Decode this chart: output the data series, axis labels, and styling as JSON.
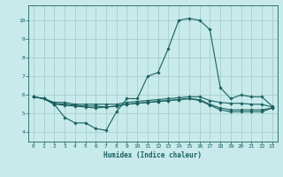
{
  "xlabel": "Humidex (Indice chaleur)",
  "bg_color": "#c8eaea",
  "grid_color": "#a0c8c8",
  "line_color": "#1a6060",
  "xlim": [
    -0.5,
    23.5
  ],
  "ylim": [
    3.5,
    10.8
  ],
  "yticks": [
    4,
    5,
    6,
    7,
    8,
    9,
    10
  ],
  "xticks": [
    0,
    1,
    2,
    3,
    4,
    5,
    6,
    7,
    8,
    9,
    10,
    11,
    12,
    13,
    14,
    15,
    16,
    17,
    18,
    19,
    20,
    21,
    22,
    23
  ],
  "curve1_x": [
    0,
    1,
    2,
    3,
    4,
    5,
    6,
    7,
    8,
    9,
    10,
    11,
    12,
    13,
    14,
    15,
    16,
    17,
    18,
    19,
    20,
    21,
    22,
    23
  ],
  "curve1_y": [
    5.9,
    5.8,
    5.5,
    4.8,
    4.5,
    4.5,
    4.2,
    4.1,
    5.1,
    5.8,
    5.8,
    7.0,
    7.2,
    8.5,
    10.0,
    10.1,
    10.0,
    9.5,
    6.4,
    5.8,
    6.0,
    5.9,
    5.9,
    5.4
  ],
  "curve2_x": [
    0,
    1,
    2,
    3,
    4,
    5,
    6,
    7,
    8,
    9,
    10,
    11,
    12,
    13,
    14,
    15,
    16,
    17,
    18,
    19,
    20,
    21,
    22,
    23
  ],
  "curve2_y": [
    5.9,
    5.8,
    5.6,
    5.6,
    5.5,
    5.5,
    5.5,
    5.5,
    5.5,
    5.6,
    5.65,
    5.7,
    5.75,
    5.8,
    5.85,
    5.9,
    5.9,
    5.7,
    5.6,
    5.55,
    5.55,
    5.5,
    5.5,
    5.35
  ],
  "curve3_x": [
    0,
    1,
    2,
    3,
    4,
    5,
    6,
    7,
    8,
    9,
    10,
    11,
    12,
    13,
    14,
    15,
    16,
    17,
    18,
    19,
    20,
    21,
    22,
    23
  ],
  "curve3_y": [
    5.9,
    5.8,
    5.55,
    5.5,
    5.45,
    5.4,
    5.4,
    5.35,
    5.4,
    5.5,
    5.55,
    5.6,
    5.65,
    5.7,
    5.75,
    5.8,
    5.75,
    5.5,
    5.3,
    5.2,
    5.2,
    5.2,
    5.2,
    5.3
  ],
  "curve4_x": [
    0,
    1,
    2,
    3,
    4,
    5,
    6,
    7,
    8,
    9,
    10,
    11,
    12,
    13,
    14,
    15,
    16,
    17,
    18,
    19,
    20,
    21,
    22,
    23
  ],
  "curve4_y": [
    5.9,
    5.8,
    5.5,
    5.45,
    5.4,
    5.35,
    5.3,
    5.35,
    5.4,
    5.5,
    5.55,
    5.6,
    5.65,
    5.7,
    5.75,
    5.8,
    5.7,
    5.45,
    5.2,
    5.1,
    5.1,
    5.1,
    5.1,
    5.3
  ]
}
